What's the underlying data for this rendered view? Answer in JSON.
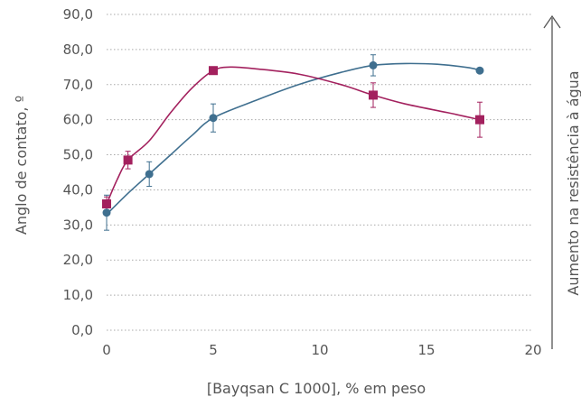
{
  "chart_data": {
    "type": "line",
    "xlabel": "[Bayqsan C 1000], % em peso",
    "ylabel": "Anglo de contato, º",
    "annotation": "Aumento na resistência à água",
    "xlim": [
      0,
      20
    ],
    "ylim": [
      0,
      90
    ],
    "x_ticks": [
      "0",
      "5",
      "10",
      "15",
      "20"
    ],
    "y_ticks": [
      "0,0",
      "10,0",
      "20,0",
      "30,0",
      "40,0",
      "50,0",
      "60,0",
      "70,0",
      "80,0",
      "90,0"
    ],
    "grid": "horizontal dotted",
    "series": [
      {
        "marker": "circle",
        "color": "#3f6f8f",
        "x": [
          0,
          2,
          5,
          12.5,
          17.5
        ],
        "y": [
          33.5,
          44.5,
          60.5,
          75.5,
          74
        ],
        "err": [
          5,
          3.5,
          4,
          3,
          0
        ]
      },
      {
        "marker": "square",
        "color": "#a3215e",
        "x": [
          0,
          1,
          5,
          12.5,
          17.5
        ],
        "y": [
          36,
          48.5,
          74,
          67,
          60
        ],
        "err": [
          2,
          2.5,
          0.5,
          3.5,
          5
        ]
      }
    ],
    "curves": [
      {
        "color": "#3f6f8f",
        "x": [
          0,
          1,
          2,
          3,
          4,
          5,
          7,
          9,
          11,
          12.5,
          14,
          15.5,
          17,
          17.5
        ],
        "y": [
          33,
          39,
          44.5,
          50,
          55.5,
          60.5,
          65.5,
          70,
          73.5,
          75.5,
          76,
          75.8,
          74.8,
          74
        ]
      },
      {
        "color": "#a3215e",
        "x": [
          0,
          0.5,
          1,
          2,
          3,
          4,
          5,
          5.8,
          7,
          9,
          11,
          12.5,
          14,
          16,
          17.5
        ],
        "y": [
          36,
          43,
          48.5,
          54,
          62,
          69,
          74,
          75,
          74.5,
          73,
          70,
          67,
          64.5,
          62,
          60
        ]
      }
    ]
  }
}
